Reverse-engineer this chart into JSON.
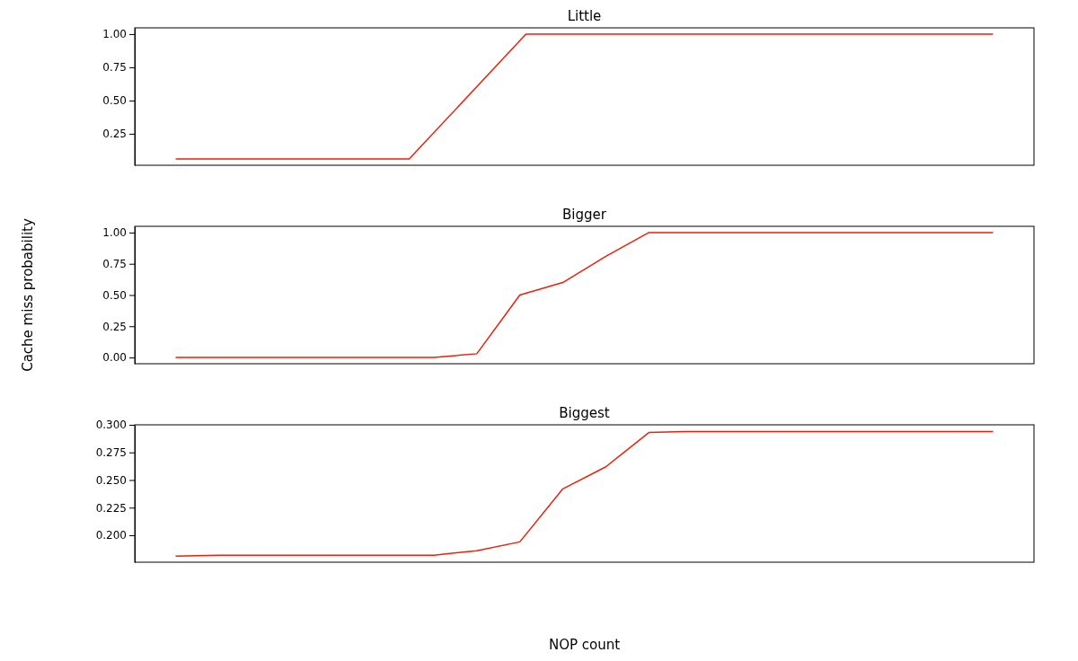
{
  "chart_data": [
    {
      "type": "line",
      "title": "Little",
      "categories": [
        null,
        null,
        null,
        null,
        null,
        null,
        null,
        null
      ],
      "series": [
        {
          "color": "#e8200c",
          "values": [
            0.06,
            0.06,
            0.06,
            1,
            1,
            1,
            1,
            1
          ]
        }
      ],
      "ylim": [
        0.013,
        1.047
      ],
      "yticks": [
        {
          "value": 0.25,
          "label": "0.25"
        },
        {
          "value": 0.5,
          "label": "0.50"
        },
        {
          "value": 0.75,
          "label": "0.75"
        },
        {
          "value": 1,
          "label": "1.00"
        }
      ],
      "tick_labels": "y"
    },
    {
      "type": "line",
      "title": "Bigger",
      "ylabel": "Cache miss probability",
      "categories": [
        null,
        null,
        null,
        null,
        null,
        null,
        null,
        null,
        null,
        null,
        null,
        null,
        null,
        null,
        null,
        null,
        null,
        null,
        null,
        null
      ],
      "series": [
        {
          "color": "#e8200c",
          "values": [
            0,
            0,
            0,
            0,
            0,
            0,
            0,
            0.03,
            0.5,
            0.6,
            0.81,
            1,
            1,
            1,
            1,
            1,
            1,
            1,
            1,
            1
          ]
        }
      ],
      "ylim": [
        -0.05,
        1.05
      ],
      "yticks": [
        {
          "value": 0,
          "label": "0.00"
        },
        {
          "value": 0.25,
          "label": "0.25"
        },
        {
          "value": 0.5,
          "label": "0.50"
        },
        {
          "value": 0.75,
          "label": "0.75"
        },
        {
          "value": 1,
          "label": "1.00"
        }
      ],
      "tick_labels": "y"
    },
    {
      "type": "line",
      "title": "Biggest",
      "xlabel": "NOP count",
      "categories": [
        null,
        null,
        null,
        null,
        null,
        null,
        null,
        null,
        null,
        null,
        null,
        null,
        null,
        null,
        null,
        null,
        null,
        null,
        null,
        null
      ],
      "series": [
        {
          "color": "#e8200c",
          "values": [
            0.181,
            0.182,
            0.182,
            0.182,
            0.182,
            0.182,
            0.182,
            0.186,
            0.194,
            0.242,
            0.262,
            0.293,
            0.294,
            0.294,
            0.294,
            0.294,
            0.294,
            0.294,
            0.294,
            0.294
          ]
        }
      ],
      "ylim": [
        0.1756,
        0.3
      ],
      "yticks": [
        {
          "value": 0.2,
          "label": "0.200"
        },
        {
          "value": 0.225,
          "label": "0.225"
        },
        {
          "value": 0.25,
          "label": "0.250"
        },
        {
          "value": 0.275,
          "label": "0.275"
        },
        {
          "value": 0.3,
          "label": "0.300"
        }
      ],
      "tick_labels": "y"
    }
  ]
}
